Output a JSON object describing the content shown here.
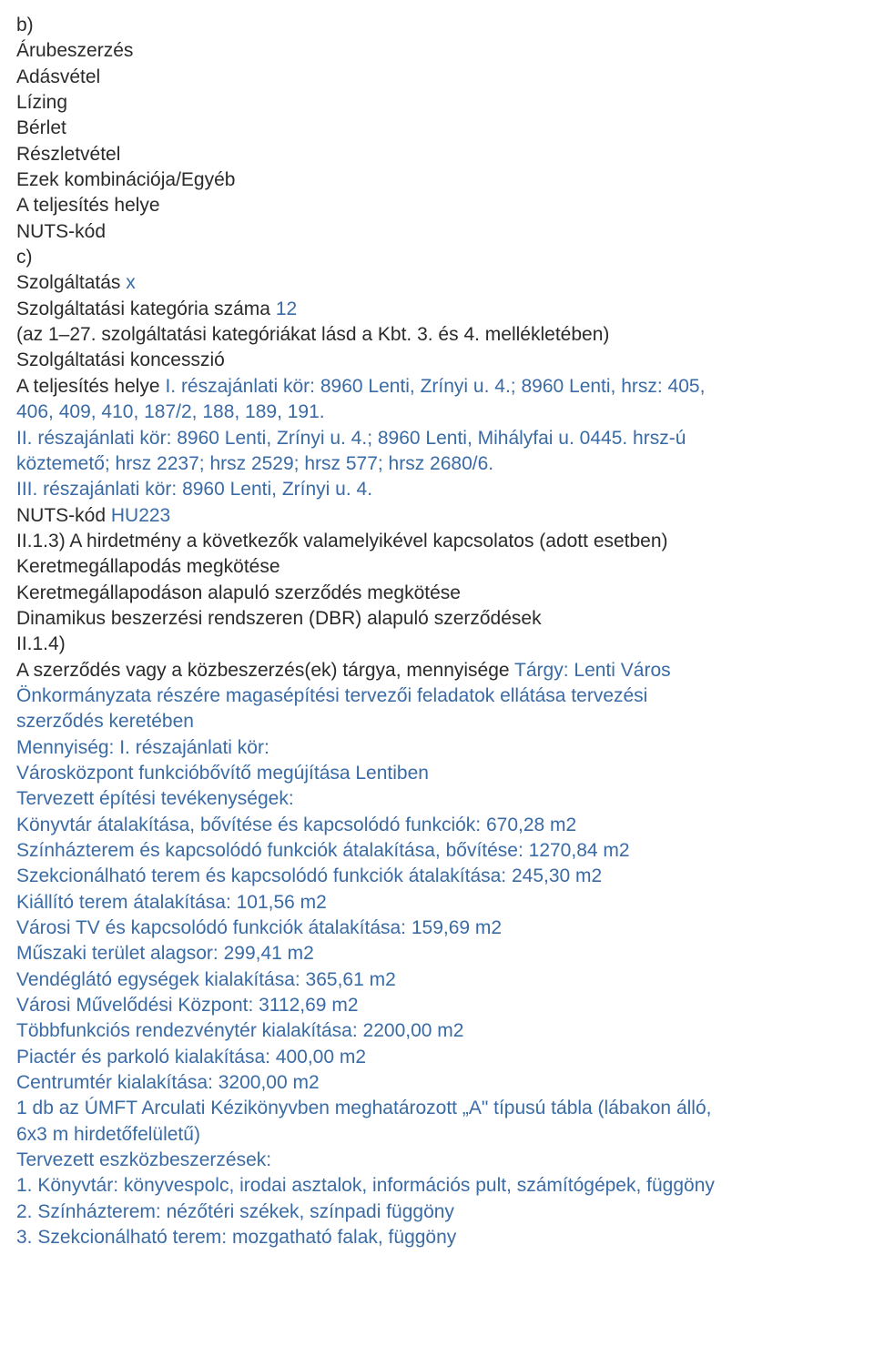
{
  "doc": {
    "lines": [
      [
        {
          "t": "b)",
          "c": "black"
        }
      ],
      [
        {
          "t": "Árubeszerzés",
          "c": "black"
        }
      ],
      [
        {
          "t": "Adásvétel",
          "c": "black"
        }
      ],
      [
        {
          "t": "Lízing",
          "c": "black"
        }
      ],
      [
        {
          "t": "Bérlet",
          "c": "black"
        }
      ],
      [
        {
          "t": "Részletvétel",
          "c": "black"
        }
      ],
      [
        {
          "t": "Ezek kombinációja/Egyéb",
          "c": "black"
        }
      ],
      [
        {
          "t": "A teljesítés helye",
          "c": "black"
        }
      ],
      [
        {
          "t": "NUTS-kód",
          "c": "black"
        }
      ],
      [
        {
          "t": "c)",
          "c": "black"
        }
      ],
      [
        {
          "t": "Szolgáltatás ",
          "c": "black"
        },
        {
          "t": "x",
          "c": "blue"
        }
      ],
      [
        {
          "t": "Szolgáltatási kategória száma ",
          "c": "black"
        },
        {
          "t": "12",
          "c": "blue"
        }
      ],
      [
        {
          "t": "(az 1–27. szolgáltatási kategóriákat lásd a Kbt. 3. és 4. mellékletében)",
          "c": "black"
        }
      ],
      [
        {
          "t": "Szolgáltatási koncesszió",
          "c": "black"
        }
      ],
      [
        {
          "t": "A teljesítés helye ",
          "c": "black"
        },
        {
          "t": "I. részajánlati kör: 8960 Lenti, Zrínyi u. 4.; 8960 Lenti, hrsz: 405,",
          "c": "blue"
        }
      ],
      [
        {
          "t": "406, 409, 410, 187/2, 188, 189, 191.",
          "c": "blue"
        }
      ],
      [
        {
          "t": "II. részajánlati kör: 8960 Lenti, Zrínyi u. 4.; 8960 Lenti, Mihályfai u. 0445. hrsz-ú",
          "c": "blue"
        }
      ],
      [
        {
          "t": "köztemető; hrsz 2237; hrsz 2529; hrsz 577; hrsz 2680/6.",
          "c": "blue"
        }
      ],
      [
        {
          "t": "III. részajánlati kör: 8960 Lenti, Zrínyi u. 4.",
          "c": "blue"
        }
      ],
      [
        {
          "t": "NUTS-kód ",
          "c": "black"
        },
        {
          "t": "HU223",
          "c": "blue"
        }
      ],
      [
        {
          "t": "II.1.3) A hirdetmény a következők valamelyikével kapcsolatos (adott esetben)",
          "c": "black"
        }
      ],
      [
        {
          "t": "Keretmegállapodás megkötése",
          "c": "black"
        }
      ],
      [
        {
          "t": "Keretmegállapodáson alapuló szerződés megkötése",
          "c": "black"
        }
      ],
      [
        {
          "t": "Dinamikus beszerzési rendszeren (DBR) alapuló szerződések",
          "c": "black"
        }
      ],
      [
        {
          "t": "II.1.4)",
          "c": "black"
        }
      ],
      [
        {
          "t": "A szerződés vagy a közbeszerzés(ek) tárgya, mennyisége ",
          "c": "black"
        },
        {
          "t": "Tárgy: Lenti Város",
          "c": "blue"
        }
      ],
      [
        {
          "t": "Önkormányzata részére magasépítési tervezői feladatok ellátása tervezési",
          "c": "blue"
        }
      ],
      [
        {
          "t": "szerződés keretében",
          "c": "blue"
        }
      ],
      [
        {
          "t": "Mennyiség: I. részajánlati kör:",
          "c": "blue"
        }
      ],
      [
        {
          "t": "Városközpont funkcióbővítő megújítása Lentiben",
          "c": "blue"
        }
      ],
      [
        {
          "t": "Tervezett építési tevékenységek:",
          "c": "blue"
        }
      ],
      [
        {
          "t": "Könyvtár átalakítása, bővítése és kapcsolódó funkciók: 670,28 m2",
          "c": "blue"
        }
      ],
      [
        {
          "t": "Színházterem és kapcsolódó funkciók átalakítása, bővítése: 1270,84 m2",
          "c": "blue"
        }
      ],
      [
        {
          "t": "Szekcionálható terem és kapcsolódó funkciók átalakítása: 245,30 m2",
          "c": "blue"
        }
      ],
      [
        {
          "t": "Kiállító terem átalakítása: 101,56 m2",
          "c": "blue"
        }
      ],
      [
        {
          "t": "Városi TV és kapcsolódó funkciók átalakítása: 159,69 m2",
          "c": "blue"
        }
      ],
      [
        {
          "t": "Műszaki terület alagsor: 299,41 m2",
          "c": "blue"
        }
      ],
      [
        {
          "t": "Vendéglátó egységek kialakítása: 365,61 m2",
          "c": "blue"
        }
      ],
      [
        {
          "t": "Városi Művelődési Központ: 3112,69 m2",
          "c": "blue"
        }
      ],
      [
        {
          "t": "Többfunkciós rendezvénytér kialakítása: 2200,00 m2",
          "c": "blue"
        }
      ],
      [
        {
          "t": "Piactér és parkoló kialakítása: 400,00 m2",
          "c": "blue"
        }
      ],
      [
        {
          "t": "Centrumtér kialakítása: 3200,00 m2",
          "c": "blue"
        }
      ],
      [
        {
          "t": "1 db az ÚMFT Arculati Kézikönyvben meghatározott „A\" típusú tábla (lábakon álló,",
          "c": "blue"
        }
      ],
      [
        {
          "t": "6x3 m hirdetőfelületű)",
          "c": "blue"
        }
      ],
      [
        {
          "t": "Tervezett eszközbeszerzések:",
          "c": "blue"
        }
      ],
      [
        {
          "t": "1. Könyvtár: könyvespolc, irodai asztalok, információs pult, számítógépek, függöny",
          "c": "blue"
        }
      ],
      [
        {
          "t": "2. Színházterem: nézőtéri székek, színpadi függöny",
          "c": "blue"
        }
      ],
      [
        {
          "t": "3. Szekcionálható terem: mozgatható falak, függöny",
          "c": "blue"
        }
      ]
    ]
  },
  "style": {
    "colors": {
      "black": "#2a2a2a",
      "blue": "#3a6ba5"
    },
    "font_size_pt": 16,
    "background": "#ffffff"
  }
}
